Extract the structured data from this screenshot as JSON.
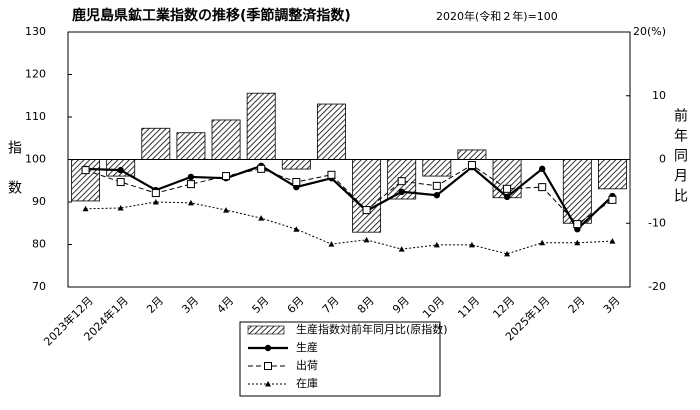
{
  "chart_data": {
    "type": "bar-line",
    "title": "鹿児島県鉱工業指数の推移(季節調整済指数)",
    "subtitle": "2020年(令和２年)=100",
    "y_label": "指数",
    "y2_label": "前年同月比",
    "categories": [
      "2023年12月",
      "2024年1月",
      "2月",
      "3月",
      "4月",
      "5月",
      "6月",
      "7月",
      "8月",
      "9月",
      "10月",
      "11月",
      "12月",
      "2025年1月",
      "2月",
      "3月"
    ],
    "ylim": [
      70,
      130
    ],
    "yticks": [
      70,
      80,
      90,
      100,
      110,
      120,
      130
    ],
    "y2lim": [
      -20,
      20
    ],
    "y2ticks": [
      -20,
      -10,
      0,
      10,
      {
        "value": 20,
        "label": "20(%)"
      }
    ],
    "legend": "bottom",
    "series": [
      {
        "name": "生産指数対前年同月比(原指数)",
        "kind": "bar",
        "axis": "y2",
        "color": "#000000",
        "values": [
          -6.5,
          -2.6,
          4.9,
          4.2,
          6.2,
          10.4,
          -1.5,
          8.7,
          -11.4,
          -6.2,
          -2.6,
          1.5,
          -6.0,
          0,
          -10.0,
          -4.6
        ]
      },
      {
        "name": "生産",
        "kind": "line",
        "color": "#000000",
        "line_style": "solid",
        "marker": "circle",
        "values": [
          97.8,
          97.5,
          92.8,
          95.9,
          95.6,
          98.5,
          93.5,
          95.6,
          87.9,
          92.4,
          91.6,
          98.2,
          91.2,
          97.8,
          83.6,
          91.4
        ]
      },
      {
        "name": "出荷",
        "kind": "line",
        "color": "#000000",
        "line_style": "dashed",
        "marker": "square",
        "values": [
          97.5,
          94.7,
          92.1,
          94.2,
          96.1,
          97.8,
          94.7,
          96.4,
          88.1,
          94.9,
          93.8,
          98.7,
          93.1,
          93.5,
          84.8,
          90.5
        ]
      },
      {
        "name": "在庫",
        "kind": "line",
        "color": "#000000",
        "line_style": "dotted",
        "marker": "triangle",
        "values": [
          88.4,
          88.6,
          90.0,
          89.8,
          88.1,
          86.2,
          83.6,
          80.1,
          81.1,
          78.9,
          79.9,
          79.9,
          77.8,
          80.4,
          80.4,
          80.8
        ]
      }
    ]
  }
}
